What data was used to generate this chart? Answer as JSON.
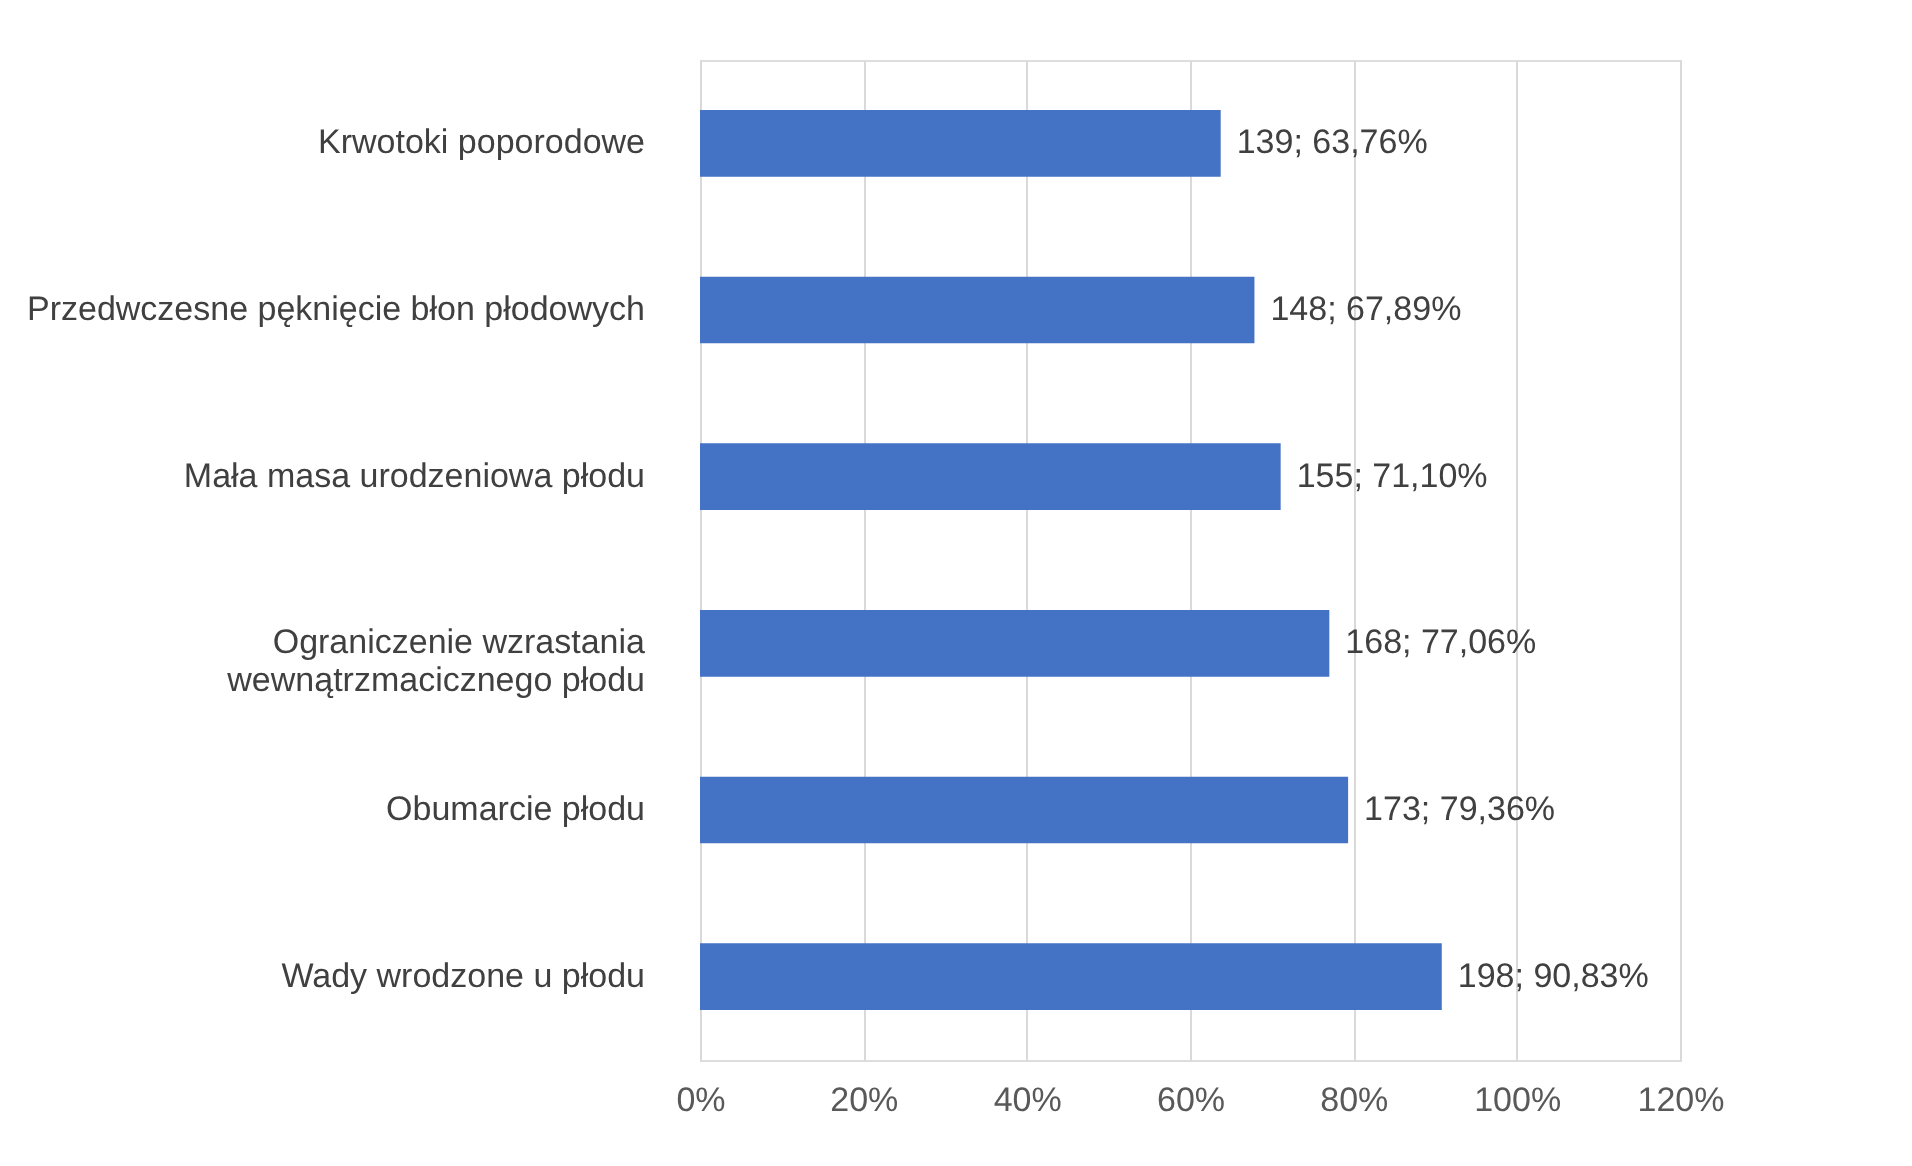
{
  "chart_data": {
    "type": "bar",
    "orientation": "horizontal",
    "categories": [
      "Krwotoki poporodowe",
      "Przedwczesne pęknięcie błon płodowych",
      "Mała masa urodzeniowa płodu",
      "Ograniczenie wzrastania wewnątrzmacicznego płodu",
      "Obumarcie płodu",
      "Wady wrodzone u płodu"
    ],
    "values": [
      63.76,
      67.89,
      71.1,
      77.06,
      79.36,
      90.83
    ],
    "value_labels": [
      "139; 63,76%",
      "148; 67,89%",
      "155; 71,10%",
      "168; 77,06%",
      "173; 79,36%",
      "198; 90,83%"
    ],
    "color": "#4472c4",
    "xlim": [
      0,
      120
    ],
    "xticks": [
      {
        "value": 0,
        "label": "0%"
      },
      {
        "value": 20,
        "label": "20%"
      },
      {
        "value": 40,
        "label": "40%"
      },
      {
        "value": 60,
        "label": "60%"
      },
      {
        "value": 80,
        "label": "80%"
      },
      {
        "value": 100,
        "label": "100%"
      },
      {
        "value": 120,
        "label": "120%"
      }
    ],
    "grid": "x"
  }
}
